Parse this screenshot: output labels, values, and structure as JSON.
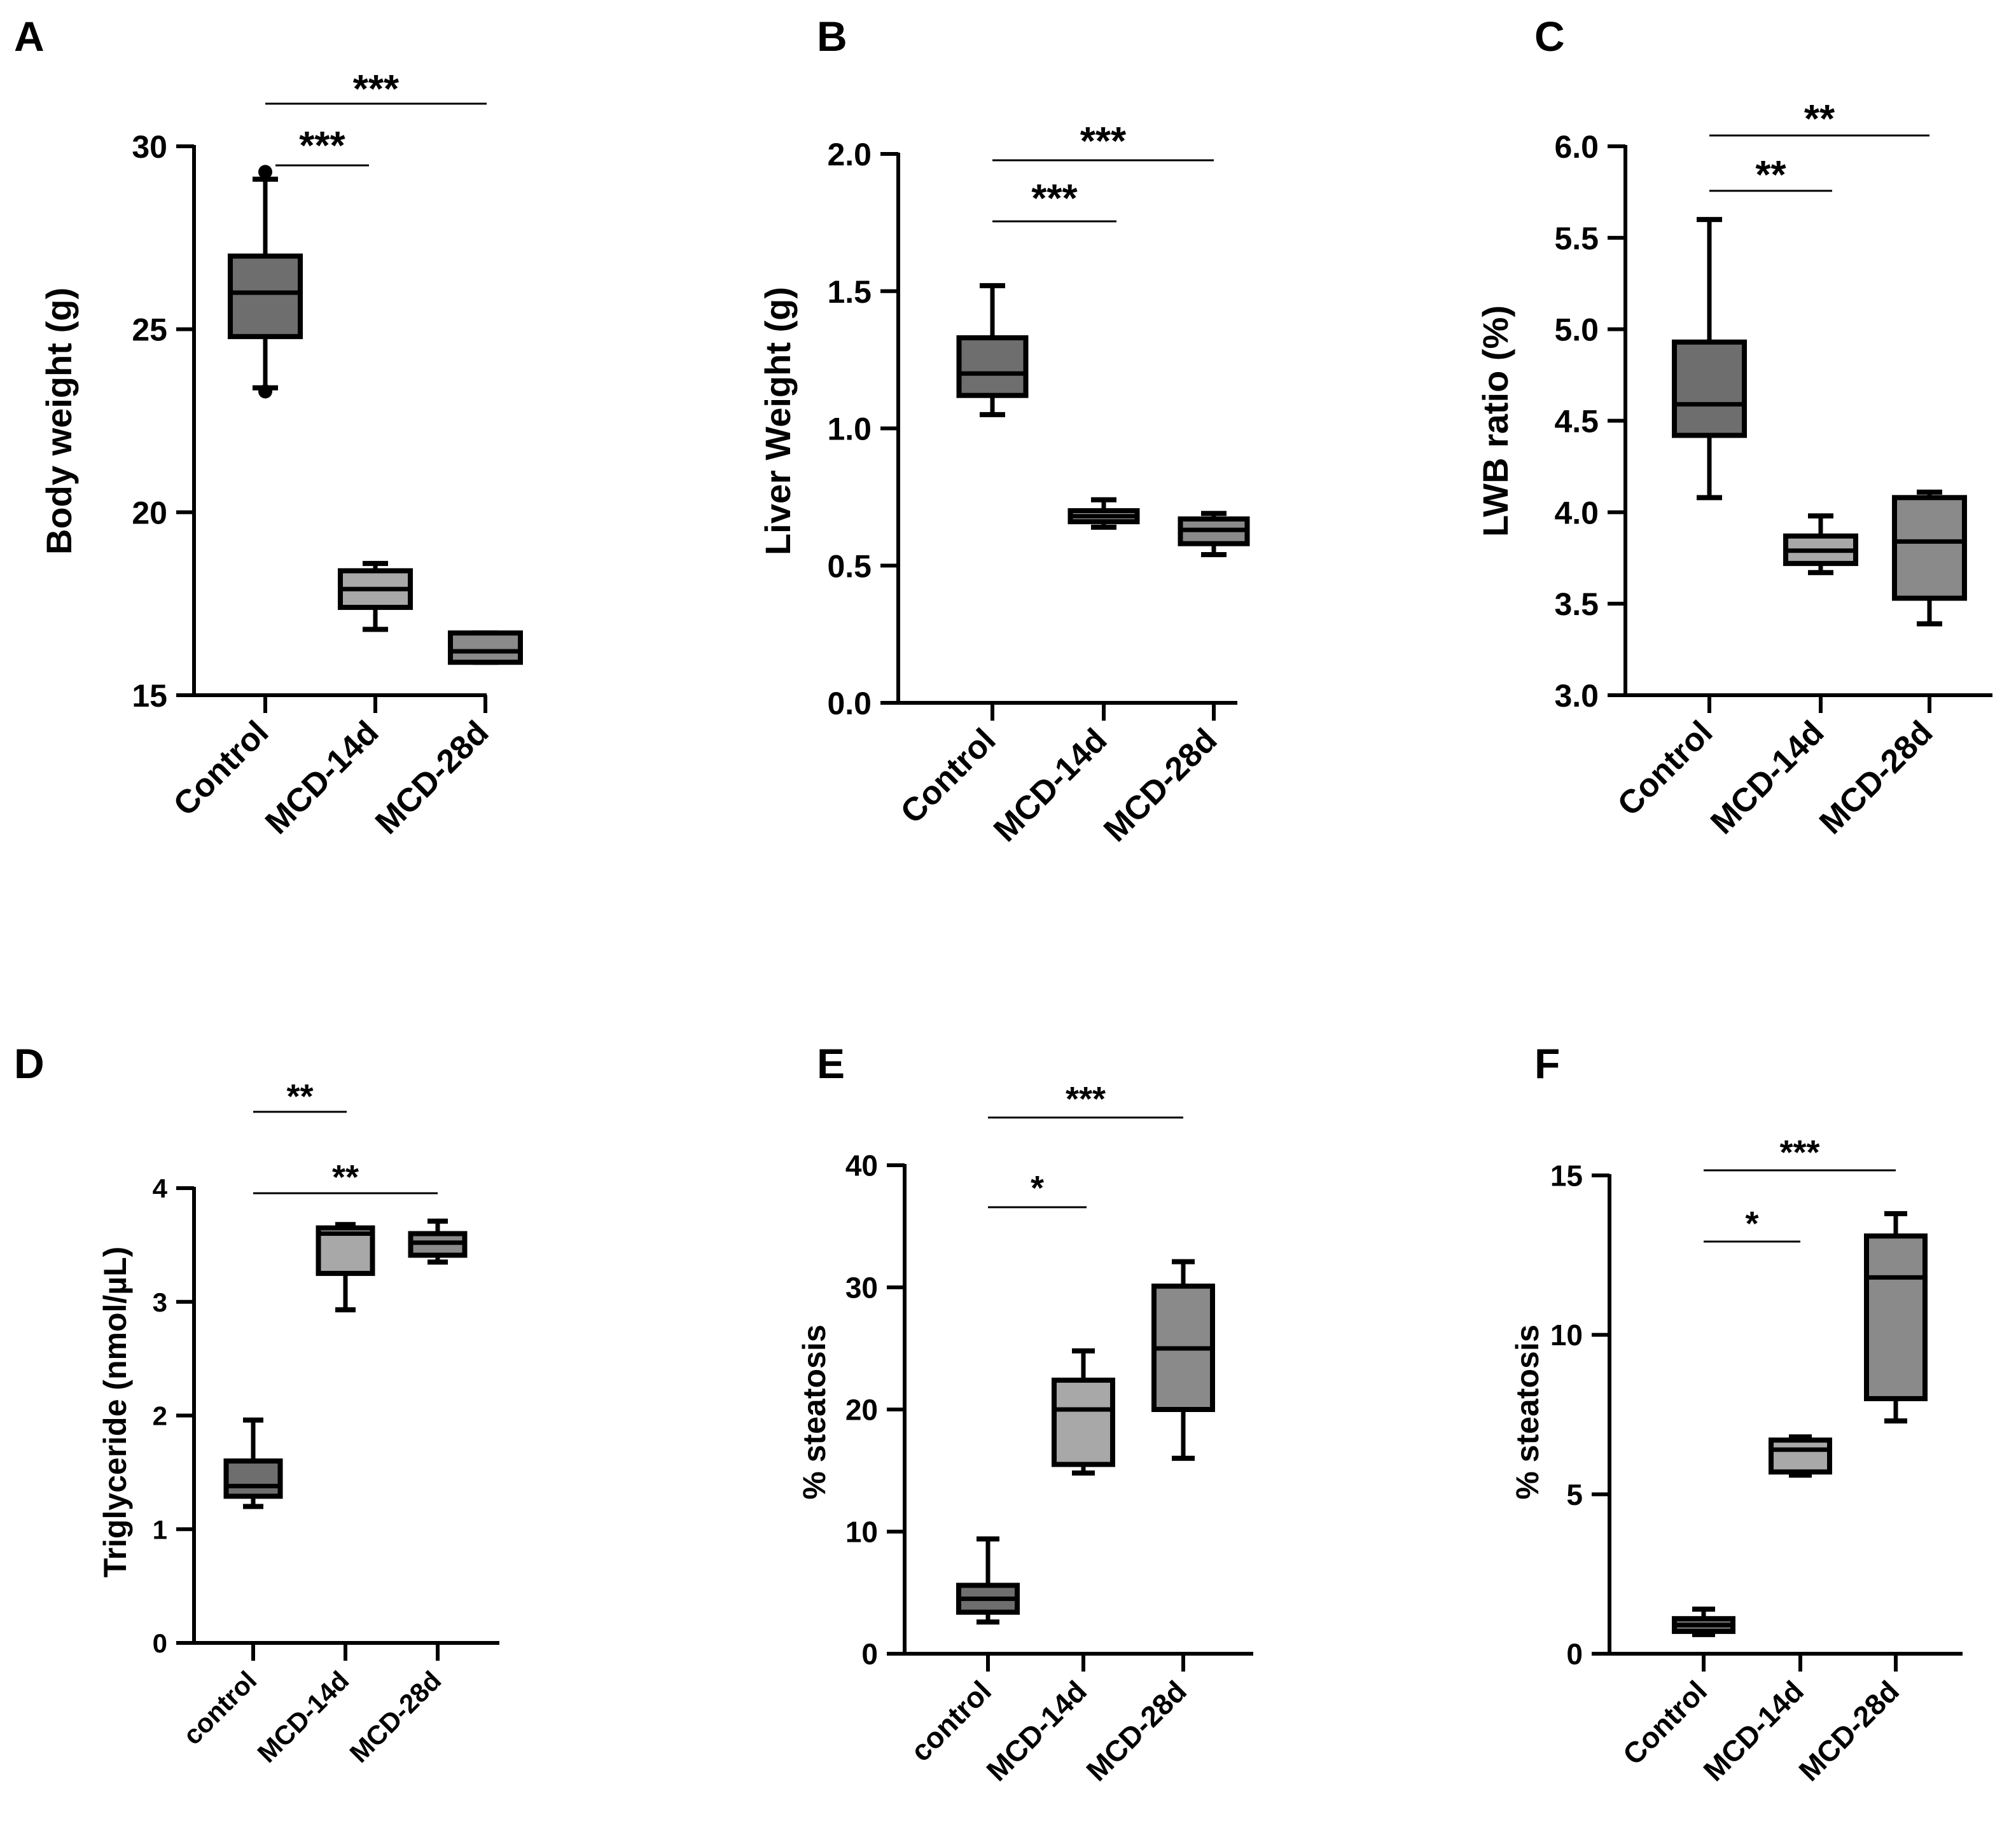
{
  "chart_data": [
    {
      "panel": "A",
      "type": "boxplot",
      "ylabel": "Body weight (g)",
      "ylim": [
        15,
        30
      ],
      "yticks": [
        15,
        20,
        25,
        30
      ],
      "categories": [
        "Control",
        "MCD-14d",
        "MCD-28d"
      ],
      "fill_colors": [
        "#6e6e6e",
        "#a8a8a8",
        "#8a8a8a"
      ],
      "boxes": [
        {
          "min": 23.4,
          "q1": 24.8,
          "median": 26.0,
          "q3": 27.0,
          "max": 29.1,
          "extra_points": [
            23.3,
            29.3
          ]
        },
        {
          "min": 16.8,
          "q1": 17.4,
          "median": 17.9,
          "q3": 18.4,
          "max": 18.6
        },
        {
          "min": 15.9,
          "q1": 15.9,
          "median": 16.2,
          "q3": 16.7,
          "max": 16.7
        }
      ],
      "significance": [
        {
          "from": 0,
          "to": 1,
          "label": "***"
        },
        {
          "from": 0,
          "to": 2,
          "label": "***"
        }
      ]
    },
    {
      "panel": "B",
      "type": "boxplot",
      "ylabel": "Liver  Weight (g)",
      "ylim": [
        0,
        2
      ],
      "yticks": [
        "0.0",
        "0.5",
        "1.0",
        "1.5",
        "2.0"
      ],
      "categories": [
        "Control",
        "MCD-14d",
        "MCD-28d"
      ],
      "fill_colors": [
        "#6e6e6e",
        "#a8a8a8",
        "#8a8a8a"
      ],
      "boxes": [
        {
          "min": 1.05,
          "q1": 1.12,
          "median": 1.2,
          "q3": 1.33,
          "max": 1.52
        },
        {
          "min": 0.64,
          "q1": 0.66,
          "median": 0.68,
          "q3": 0.7,
          "max": 0.74
        },
        {
          "min": 0.54,
          "q1": 0.58,
          "median": 0.63,
          "q3": 0.67,
          "max": 0.69
        }
      ],
      "significance": [
        {
          "from": 0,
          "to": 1,
          "label": "***"
        },
        {
          "from": 0,
          "to": 2,
          "label": "***"
        }
      ]
    },
    {
      "panel": "C",
      "type": "boxplot",
      "ylabel": "LWB ratio (%)",
      "ylim": [
        3,
        6
      ],
      "yticks": [
        "3.0",
        "3.5",
        "4.0",
        "4.5",
        "5.0",
        "5.5",
        "6.0"
      ],
      "categories": [
        "Control",
        "MCD-14d",
        "MCD-28d"
      ],
      "fill_colors": [
        "#6e6e6e",
        "#a8a8a8",
        "#8a8a8a"
      ],
      "boxes": [
        {
          "min": 4.08,
          "q1": 4.42,
          "median": 4.59,
          "q3": 4.93,
          "max": 5.6
        },
        {
          "min": 3.67,
          "q1": 3.72,
          "median": 3.79,
          "q3": 3.87,
          "max": 3.98
        },
        {
          "min": 3.39,
          "q1": 3.53,
          "median": 3.84,
          "q3": 4.08,
          "max": 4.11
        }
      ],
      "significance": [
        {
          "from": 0,
          "to": 1,
          "label": "**"
        },
        {
          "from": 0,
          "to": 2,
          "label": "**"
        }
      ]
    },
    {
      "panel": "D",
      "type": "boxplot",
      "ylabel": "Triglyceride (nmol/µL)",
      "ylim": [
        0,
        4
      ],
      "yticks": [
        0,
        1,
        2,
        3,
        4
      ],
      "categories": [
        "control",
        "MCD-14d",
        "MCD-28d"
      ],
      "fill_colors": [
        "#6e6e6e",
        "#a8a8a8",
        "#8a8a8a"
      ],
      "boxes": [
        {
          "min": 1.2,
          "q1": 1.29,
          "median": 1.38,
          "q3": 1.6,
          "max": 1.96
        },
        {
          "min": 2.93,
          "q1": 3.25,
          "median": 3.6,
          "q3": 3.65,
          "max": 3.68
        },
        {
          "min": 3.35,
          "q1": 3.41,
          "median": 3.52,
          "q3": 3.6,
          "max": 3.71
        }
      ],
      "significance": [
        {
          "from": 0,
          "to": 1,
          "label": "**"
        },
        {
          "from": 0,
          "to": 2,
          "label": "**"
        }
      ]
    },
    {
      "panel": "E",
      "type": "boxplot",
      "ylabel": "% steatosis",
      "ylim": [
        0,
        40
      ],
      "yticks": [
        0,
        10,
        20,
        30,
        40
      ],
      "categories": [
        "control",
        "MCD-14d",
        "MCD-28d"
      ],
      "fill_colors": [
        "#6e6e6e",
        "#a8a8a8",
        "#8a8a8a"
      ],
      "boxes": [
        {
          "min": 2.6,
          "q1": 3.4,
          "median": 4.5,
          "q3": 5.6,
          "max": 9.4
        },
        {
          "min": 14.8,
          "q1": 15.5,
          "median": 20.0,
          "q3": 22.4,
          "max": 24.8
        },
        {
          "min": 16.0,
          "q1": 20.0,
          "median": 25.0,
          "q3": 30.1,
          "max": 32.1
        }
      ],
      "significance": [
        {
          "from": 0,
          "to": 1,
          "label": "*"
        },
        {
          "from": 0,
          "to": 2,
          "label": "***"
        }
      ]
    },
    {
      "panel": "F",
      "type": "boxplot",
      "ylabel": "% steatosis",
      "ylim": [
        0,
        15
      ],
      "yticks": [
        0,
        5,
        10,
        15
      ],
      "categories": [
        "Control",
        "MCD-14d",
        "MCD-28d"
      ],
      "fill_colors": [
        "#6e6e6e",
        "#a8a8a8",
        "#8a8a8a"
      ],
      "boxes": [
        {
          "min": 0.6,
          "q1": 0.7,
          "median": 0.9,
          "q3": 1.1,
          "max": 1.4
        },
        {
          "min": 5.6,
          "q1": 5.7,
          "median": 6.4,
          "q3": 6.7,
          "max": 6.8
        },
        {
          "min": 7.3,
          "q1": 8.0,
          "median": 11.8,
          "q3": 13.1,
          "max": 13.8
        }
      ],
      "significance": [
        {
          "from": 0,
          "to": 1,
          "label": "*"
        },
        {
          "from": 0,
          "to": 2,
          "label": "***"
        }
      ]
    }
  ]
}
